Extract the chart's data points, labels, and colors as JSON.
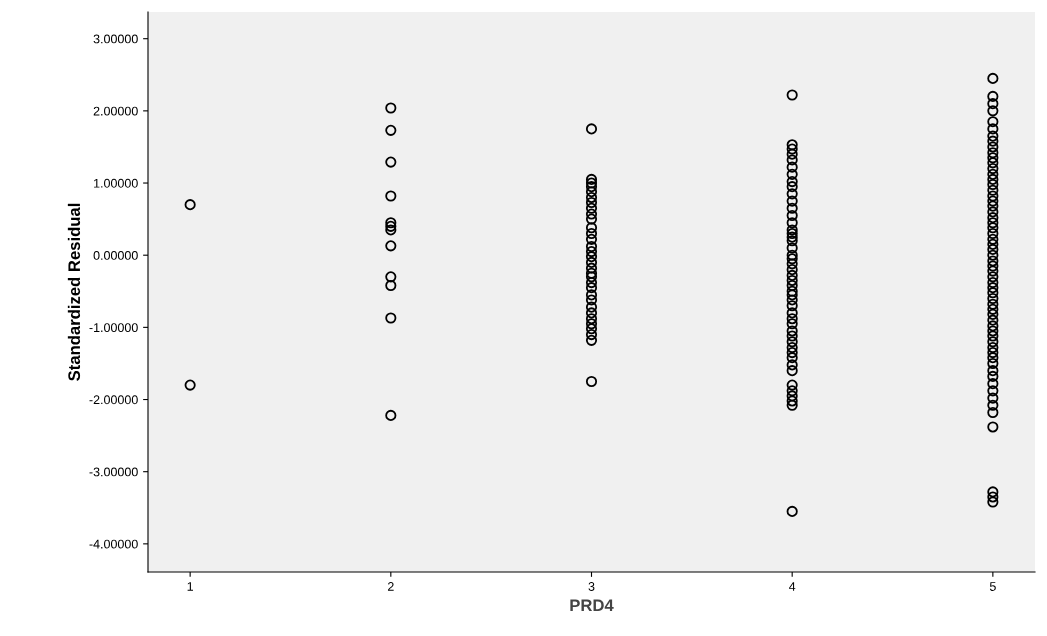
{
  "chart_data": {
    "type": "scatter",
    "xlabel": "PRD4",
    "ylabel": "Standardized Residual",
    "series": [
      {
        "color": "#000000",
        "x": [
          1,
          1,
          2,
          2,
          2,
          2,
          2,
          2,
          2,
          2,
          2,
          2,
          2,
          2
        ],
        "values": [
          0.7,
          -1.8,
          2.04,
          1.73,
          1.29,
          0.82,
          0.45,
          0.4,
          0.35,
          0.13,
          -0.3,
          -0.42,
          -0.87,
          -2.22
        ]
      },
      {
        "color": "#000000",
        "x": [
          3,
          3,
          3,
          3,
          3,
          3,
          3,
          3,
          3,
          3,
          3,
          3,
          3,
          3,
          3,
          3,
          3,
          3,
          3,
          3,
          3,
          3,
          3,
          3,
          3,
          3,
          3,
          3,
          3,
          3,
          3,
          3
        ],
        "values": [
          1.75,
          1.05,
          1.0,
          0.95,
          0.88,
          0.8,
          0.73,
          0.65,
          0.57,
          0.5,
          0.38,
          0.3,
          0.22,
          0.12,
          0.05,
          -0.02,
          -0.1,
          -0.18,
          -0.25,
          -0.3,
          -0.38,
          -0.45,
          -0.55,
          -0.62,
          -0.72,
          -0.8,
          -0.88,
          -0.95,
          -1.02,
          -1.1,
          -1.18,
          -1.75
        ]
      },
      {
        "color": "#000000",
        "x": [
          4,
          4,
          4,
          4,
          4,
          4,
          4,
          4,
          4,
          4,
          4,
          4,
          4,
          4,
          4,
          4,
          4,
          4,
          4,
          4,
          4,
          4,
          4,
          4,
          4,
          4,
          4,
          4,
          4,
          4,
          4,
          4,
          4,
          4,
          4,
          4,
          4,
          4,
          4,
          4,
          4,
          4,
          4,
          4,
          4,
          4,
          4
        ],
        "values": [
          2.22,
          1.53,
          1.47,
          1.4,
          1.32,
          1.22,
          1.12,
          1.02,
          0.95,
          0.85,
          0.75,
          0.65,
          0.55,
          0.45,
          0.35,
          0.3,
          0.25,
          0.2,
          0.1,
          0.0,
          -0.05,
          -0.12,
          -0.2,
          -0.28,
          -0.35,
          -0.42,
          -0.5,
          -0.55,
          -0.62,
          -0.7,
          -0.8,
          -0.88,
          -0.95,
          -1.05,
          -1.12,
          -1.2,
          -1.28,
          -1.35,
          -1.42,
          -1.52,
          -1.6,
          -1.8,
          -1.88,
          -1.95,
          -2.02,
          -2.08,
          -3.55
        ]
      },
      {
        "color": "#000000",
        "x": [
          5,
          5,
          5,
          5,
          5,
          5,
          5,
          5,
          5,
          5,
          5,
          5,
          5,
          5,
          5,
          5,
          5,
          5,
          5,
          5,
          5,
          5,
          5,
          5,
          5,
          5,
          5,
          5,
          5,
          5,
          5,
          5,
          5,
          5,
          5,
          5,
          5,
          5,
          5,
          5,
          5,
          5,
          5,
          5,
          5,
          5,
          5,
          5,
          5,
          5,
          5,
          5,
          5,
          5,
          5,
          5,
          5,
          5,
          5,
          5
        ],
        "values": [
          2.45,
          2.2,
          2.1,
          2.0,
          1.85,
          1.75,
          1.65,
          1.58,
          1.5,
          1.42,
          1.35,
          1.28,
          1.2,
          1.12,
          1.05,
          0.98,
          0.9,
          0.82,
          0.75,
          0.68,
          0.6,
          0.52,
          0.45,
          0.38,
          0.3,
          0.22,
          0.15,
          0.08,
          0.0,
          -0.08,
          -0.15,
          -0.22,
          -0.3,
          -0.38,
          -0.45,
          -0.52,
          -0.6,
          -0.68,
          -0.75,
          -0.82,
          -0.9,
          -0.98,
          -1.05,
          -1.12,
          -1.2,
          -1.28,
          -1.35,
          -1.42,
          -1.5,
          -1.6,
          -1.68,
          -1.78,
          -1.88,
          -1.98,
          -2.08,
          -2.18,
          -2.38,
          -3.28,
          -3.35,
          -3.42
        ]
      }
    ],
    "marker": "circle",
    "grid": false,
    "legend": false,
    "xlim": [
      0.79,
      5.21
    ],
    "xticks": [
      1,
      2,
      3,
      4,
      5
    ],
    "ylim": [
      -4.39,
      3.37
    ],
    "yticks": [
      {
        "value": -4,
        "label": "-4.00000"
      },
      {
        "value": -3,
        "label": "-3.00000"
      },
      {
        "value": -2,
        "label": "-2.00000"
      },
      {
        "value": -1,
        "label": "-1.00000"
      },
      {
        "value": 0,
        "label": "0.00000"
      },
      {
        "value": 1,
        "label": "1.00000"
      },
      {
        "value": 2,
        "label": "2.00000"
      },
      {
        "value": 3,
        "label": "3.00000"
      }
    ]
  }
}
